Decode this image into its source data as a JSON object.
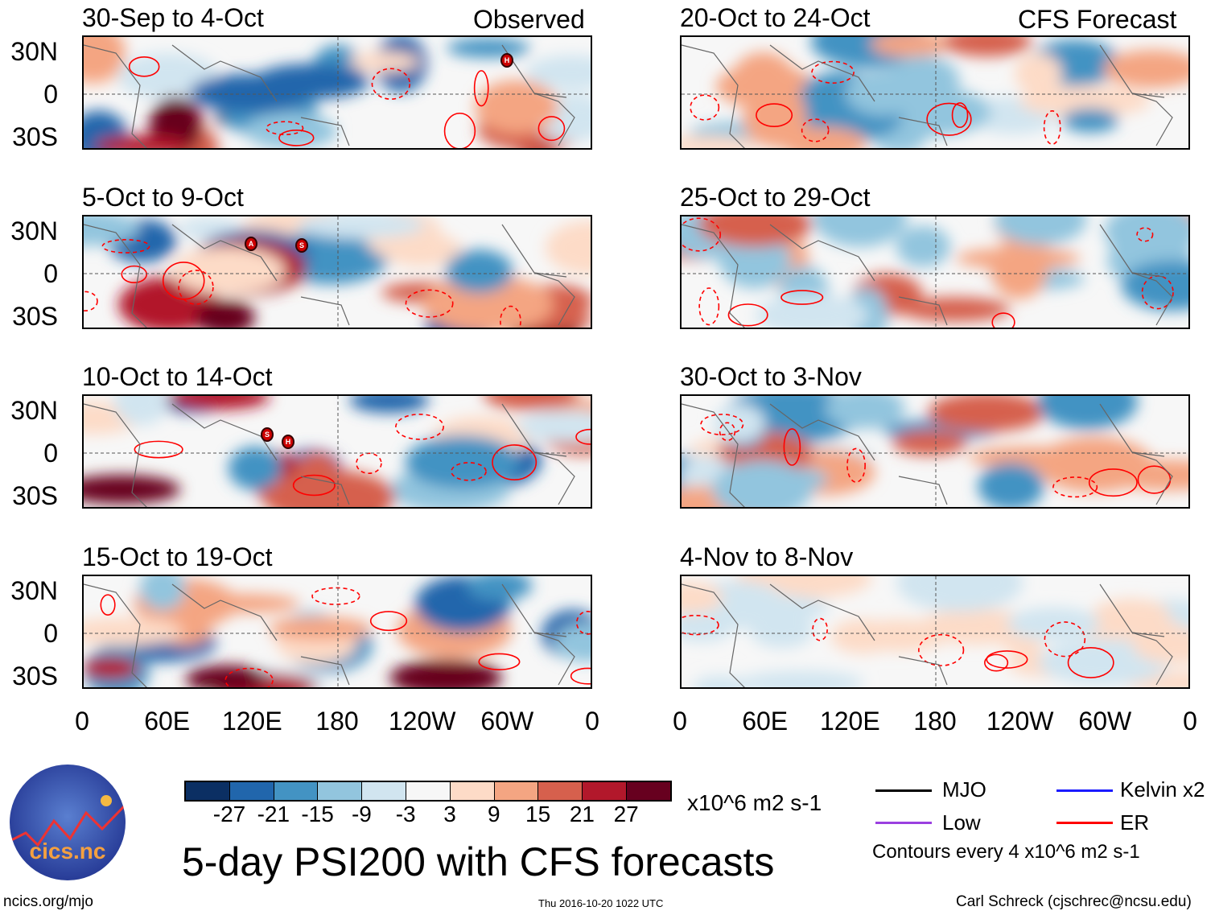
{
  "header": {
    "left_label": "Observed",
    "right_label": "CFS Forecast"
  },
  "panels": {
    "left": [
      {
        "title": "30-Sep to 4-Oct"
      },
      {
        "title": "5-Oct to 9-Oct"
      },
      {
        "title": "10-Oct to 14-Oct"
      },
      {
        "title": "15-Oct to 19-Oct"
      }
    ],
    "right": [
      {
        "title": "20-Oct to 24-Oct"
      },
      {
        "title": "25-Oct to 29-Oct"
      },
      {
        "title": "30-Oct to 3-Nov"
      },
      {
        "title": "4-Nov to 8-Nov"
      }
    ]
  },
  "storm_markers": [
    "H",
    "A",
    "S",
    "S",
    "H"
  ],
  "y_axis": [
    "30N",
    "0",
    "30S"
  ],
  "x_axis": [
    "0",
    "60E",
    "120E",
    "180",
    "120W",
    "60W",
    "0"
  ],
  "colorbar": {
    "colors": [
      "#0b2f63",
      "#2166ac",
      "#4393c3",
      "#92c5de",
      "#d1e5f0",
      "#f7f7f7",
      "#fddbc7",
      "#f4a582",
      "#d6604d",
      "#b2182b",
      "#67001f"
    ],
    "labels": [
      "-27",
      "-21",
      "-15",
      "-9",
      "-3",
      "3",
      "9",
      "15",
      "21",
      "27"
    ],
    "units": "x10^6 m2 s-1"
  },
  "legend": {
    "items": [
      {
        "label": "MJO",
        "color": "#000000"
      },
      {
        "label": "Kelvin x2",
        "color": "#1a1aff"
      },
      {
        "label": "Low",
        "color": "#9b40e0"
      },
      {
        "label": "ER",
        "color": "#ff0000"
      }
    ],
    "contours_note": "Contours every 4 x10^6 m2 s-1"
  },
  "main_title": "5-day PSI200 with CFS forecasts",
  "footer": {
    "website": "ncics.org/mjo",
    "timestamp": "Thu 2016-10-20 1022 UTC",
    "credit": "Carl Schreck (cjschrec@ncsu.edu)"
  },
  "logo": {
    "text": "cics.nc",
    "ring_text": "Cooperative Institute for Climate and Satellites"
  }
}
